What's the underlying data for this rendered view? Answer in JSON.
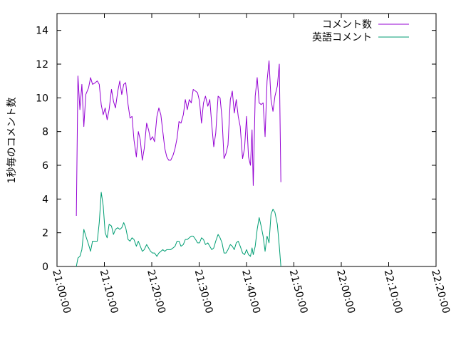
{
  "chart_data": {
    "type": "line",
    "title": "",
    "xlabel": "",
    "ylabel": "1秒毎のコメント数",
    "xlim": [
      "21:00:00",
      "22:20:00"
    ],
    "ylim": [
      0,
      15
    ],
    "grid": false,
    "legend": "top-right",
    "x_ticks": [
      "21:00:00",
      "21:10:00",
      "21:20:00",
      "21:30:00",
      "21:40:00",
      "21:50:00",
      "22:00:00",
      "22:10:00",
      "22:20:00"
    ],
    "y_ticks": [
      "0",
      "2",
      "4",
      "6",
      "8",
      "10",
      "12",
      "14"
    ],
    "series": [
      {
        "name": "コメント数",
        "color": "#9400d3",
        "points": [
          [
            "21:04:05",
            3.0
          ],
          [
            "21:04:25",
            11.3
          ],
          [
            "21:04:50",
            9.3
          ],
          [
            "21:05:15",
            10.8
          ],
          [
            "21:05:40",
            8.3
          ],
          [
            "21:06:05",
            10.2
          ],
          [
            "21:06:40",
            10.6
          ],
          [
            "21:07:05",
            11.2
          ],
          [
            "21:07:30",
            10.8
          ],
          [
            "21:08:05",
            10.9
          ],
          [
            "21:08:30",
            11.0
          ],
          [
            "21:08:55",
            10.8
          ],
          [
            "21:09:20",
            9.6
          ],
          [
            "21:09:45",
            9.0
          ],
          [
            "21:10:10",
            9.4
          ],
          [
            "21:10:35",
            8.7
          ],
          [
            "21:11:00",
            9.3
          ],
          [
            "21:11:30",
            10.5
          ],
          [
            "21:11:55",
            9.8
          ],
          [
            "21:12:20",
            9.4
          ],
          [
            "21:12:50",
            10.4
          ],
          [
            "21:13:15",
            11.0
          ],
          [
            "21:13:40",
            10.2
          ],
          [
            "21:14:05",
            10.8
          ],
          [
            "21:14:30",
            10.9
          ],
          [
            "21:15:00",
            9.6
          ],
          [
            "21:15:25",
            8.8
          ],
          [
            "21:15:50",
            8.9
          ],
          [
            "21:16:15",
            7.5
          ],
          [
            "21:16:45",
            6.5
          ],
          [
            "21:17:10",
            8.0
          ],
          [
            "21:17:35",
            7.5
          ],
          [
            "21:18:00",
            6.3
          ],
          [
            "21:18:25",
            7.0
          ],
          [
            "21:18:55",
            8.5
          ],
          [
            "21:19:20",
            8.1
          ],
          [
            "21:19:45",
            7.5
          ],
          [
            "21:20:10",
            7.7
          ],
          [
            "21:20:35",
            7.4
          ],
          [
            "21:21:05",
            8.9
          ],
          [
            "21:21:30",
            9.4
          ],
          [
            "21:21:55",
            9.0
          ],
          [
            "21:22:20",
            8.0
          ],
          [
            "21:22:45",
            7.0
          ],
          [
            "21:23:10",
            6.5
          ],
          [
            "21:23:35",
            6.3
          ],
          [
            "21:24:00",
            6.3
          ],
          [
            "21:24:30",
            6.6
          ],
          [
            "21:24:55",
            7.0
          ],
          [
            "21:25:20",
            7.6
          ],
          [
            "21:25:45",
            8.6
          ],
          [
            "21:26:10",
            8.5
          ],
          [
            "21:26:40",
            9.0
          ],
          [
            "21:27:05",
            9.9
          ],
          [
            "21:27:30",
            9.3
          ],
          [
            "21:27:55",
            9.9
          ],
          [
            "21:28:20",
            9.7
          ],
          [
            "21:28:45",
            10.5
          ],
          [
            "21:29:15",
            10.4
          ],
          [
            "21:29:40",
            10.3
          ],
          [
            "21:30:05",
            9.8
          ],
          [
            "21:30:30",
            8.5
          ],
          [
            "21:30:55",
            9.7
          ],
          [
            "21:31:20",
            10.1
          ],
          [
            "21:31:50",
            9.5
          ],
          [
            "21:32:15",
            9.9
          ],
          [
            "21:32:40",
            8.4
          ],
          [
            "21:33:05",
            7.1
          ],
          [
            "21:33:30",
            7.9
          ],
          [
            "21:34:00",
            10.1
          ],
          [
            "21:34:25",
            10.0
          ],
          [
            "21:34:50",
            8.8
          ],
          [
            "21:35:15",
            6.4
          ],
          [
            "21:35:40",
            6.7
          ],
          [
            "21:36:05",
            7.2
          ],
          [
            "21:36:35",
            9.9
          ],
          [
            "21:37:00",
            10.4
          ],
          [
            "21:37:25",
            9.1
          ],
          [
            "21:37:50",
            9.9
          ],
          [
            "21:38:15",
            8.9
          ],
          [
            "21:38:40",
            8.3
          ],
          [
            "21:39:10",
            6.4
          ],
          [
            "21:39:35",
            7.0
          ],
          [
            "21:40:00",
            8.9
          ],
          [
            "21:40:25",
            6.5
          ],
          [
            "21:40:50",
            6.0
          ],
          [
            "21:41:10",
            8.1
          ],
          [
            "21:41:25",
            4.8
          ],
          [
            "21:41:50",
            10.1
          ],
          [
            "21:42:15",
            11.2
          ],
          [
            "21:42:40",
            9.7
          ],
          [
            "21:43:05",
            9.6
          ],
          [
            "21:43:30",
            9.7
          ],
          [
            "21:43:55",
            7.7
          ],
          [
            "21:44:20",
            11.0
          ],
          [
            "21:44:45",
            12.2
          ],
          [
            "21:45:10",
            9.9
          ],
          [
            "21:45:35",
            9.2
          ],
          [
            "21:46:00",
            10.1
          ],
          [
            "21:46:30",
            10.7
          ],
          [
            "21:46:55",
            12.0
          ],
          [
            "21:47:15",
            5.0
          ]
        ]
      },
      {
        "name": "英語コメント",
        "color": "#009e73",
        "points": [
          [
            "21:04:05",
            0.0
          ],
          [
            "21:04:25",
            0.5
          ],
          [
            "21:04:50",
            0.6
          ],
          [
            "21:05:15",
            1.0
          ],
          [
            "21:05:40",
            2.2
          ],
          [
            "21:06:05",
            1.8
          ],
          [
            "21:06:40",
            1.3
          ],
          [
            "21:07:05",
            0.9
          ],
          [
            "21:07:30",
            1.5
          ],
          [
            "21:08:05",
            1.5
          ],
          [
            "21:08:30",
            1.5
          ],
          [
            "21:08:55",
            2.6
          ],
          [
            "21:09:20",
            4.4
          ],
          [
            "21:09:45",
            3.6
          ],
          [
            "21:10:10",
            2.0
          ],
          [
            "21:10:35",
            1.7
          ],
          [
            "21:11:00",
            2.5
          ],
          [
            "21:11:30",
            2.4
          ],
          [
            "21:11:55",
            1.9
          ],
          [
            "21:12:20",
            2.2
          ],
          [
            "21:12:50",
            2.3
          ],
          [
            "21:13:15",
            2.2
          ],
          [
            "21:13:40",
            2.3
          ],
          [
            "21:14:05",
            2.6
          ],
          [
            "21:14:30",
            2.3
          ],
          [
            "21:15:00",
            1.6
          ],
          [
            "21:15:25",
            1.5
          ],
          [
            "21:15:50",
            1.7
          ],
          [
            "21:16:15",
            1.6
          ],
          [
            "21:16:45",
            1.2
          ],
          [
            "21:17:10",
            1.5
          ],
          [
            "21:17:35",
            1.2
          ],
          [
            "21:18:00",
            0.9
          ],
          [
            "21:18:25",
            1.0
          ],
          [
            "21:18:55",
            1.3
          ],
          [
            "21:19:20",
            1.1
          ],
          [
            "21:19:45",
            0.9
          ],
          [
            "21:20:10",
            0.8
          ],
          [
            "21:20:35",
            0.8
          ],
          [
            "21:21:05",
            0.6
          ],
          [
            "21:21:30",
            0.8
          ],
          [
            "21:21:55",
            0.9
          ],
          [
            "21:22:20",
            1.0
          ],
          [
            "21:22:45",
            0.9
          ],
          [
            "21:23:10",
            1.0
          ],
          [
            "21:23:35",
            1.0
          ],
          [
            "21:24:00",
            1.0
          ],
          [
            "21:24:30",
            1.1
          ],
          [
            "21:24:55",
            1.2
          ],
          [
            "21:25:20",
            1.5
          ],
          [
            "21:25:45",
            1.5
          ],
          [
            "21:26:10",
            1.2
          ],
          [
            "21:26:40",
            1.3
          ],
          [
            "21:27:05",
            1.6
          ],
          [
            "21:27:30",
            1.6
          ],
          [
            "21:27:55",
            1.7
          ],
          [
            "21:28:20",
            1.8
          ],
          [
            "21:28:45",
            1.8
          ],
          [
            "21:29:15",
            1.6
          ],
          [
            "21:29:40",
            1.4
          ],
          [
            "21:30:05",
            1.4
          ],
          [
            "21:30:30",
            1.7
          ],
          [
            "21:30:55",
            1.6
          ],
          [
            "21:31:20",
            1.3
          ],
          [
            "21:31:50",
            1.4
          ],
          [
            "21:32:15",
            1.2
          ],
          [
            "21:32:40",
            1.0
          ],
          [
            "21:33:05",
            1.1
          ],
          [
            "21:33:30",
            1.5
          ],
          [
            "21:34:00",
            1.9
          ],
          [
            "21:34:25",
            1.7
          ],
          [
            "21:34:50",
            1.4
          ],
          [
            "21:35:15",
            0.8
          ],
          [
            "21:35:40",
            0.8
          ],
          [
            "21:36:05",
            1.0
          ],
          [
            "21:36:35",
            1.3
          ],
          [
            "21:37:00",
            1.2
          ],
          [
            "21:37:25",
            1.0
          ],
          [
            "21:37:50",
            1.4
          ],
          [
            "21:38:15",
            1.5
          ],
          [
            "21:38:40",
            1.2
          ],
          [
            "21:39:10",
            0.8
          ],
          [
            "21:39:35",
            0.7
          ],
          [
            "21:40:00",
            1.0
          ],
          [
            "21:40:25",
            0.7
          ],
          [
            "21:40:50",
            0.6
          ],
          [
            "21:41:10",
            1.1
          ],
          [
            "21:41:25",
            0.7
          ],
          [
            "21:41:50",
            1.2
          ],
          [
            "21:42:15",
            2.2
          ],
          [
            "21:42:40",
            2.9
          ],
          [
            "21:43:05",
            2.4
          ],
          [
            "21:43:30",
            1.8
          ],
          [
            "21:43:55",
            0.9
          ],
          [
            "21:44:20",
            1.8
          ],
          [
            "21:44:45",
            1.4
          ],
          [
            "21:45:10",
            3.1
          ],
          [
            "21:45:35",
            3.4
          ],
          [
            "21:46:00",
            3.2
          ],
          [
            "21:46:30",
            2.5
          ],
          [
            "21:46:55",
            1.2
          ],
          [
            "21:47:15",
            0.0
          ]
        ]
      }
    ]
  }
}
